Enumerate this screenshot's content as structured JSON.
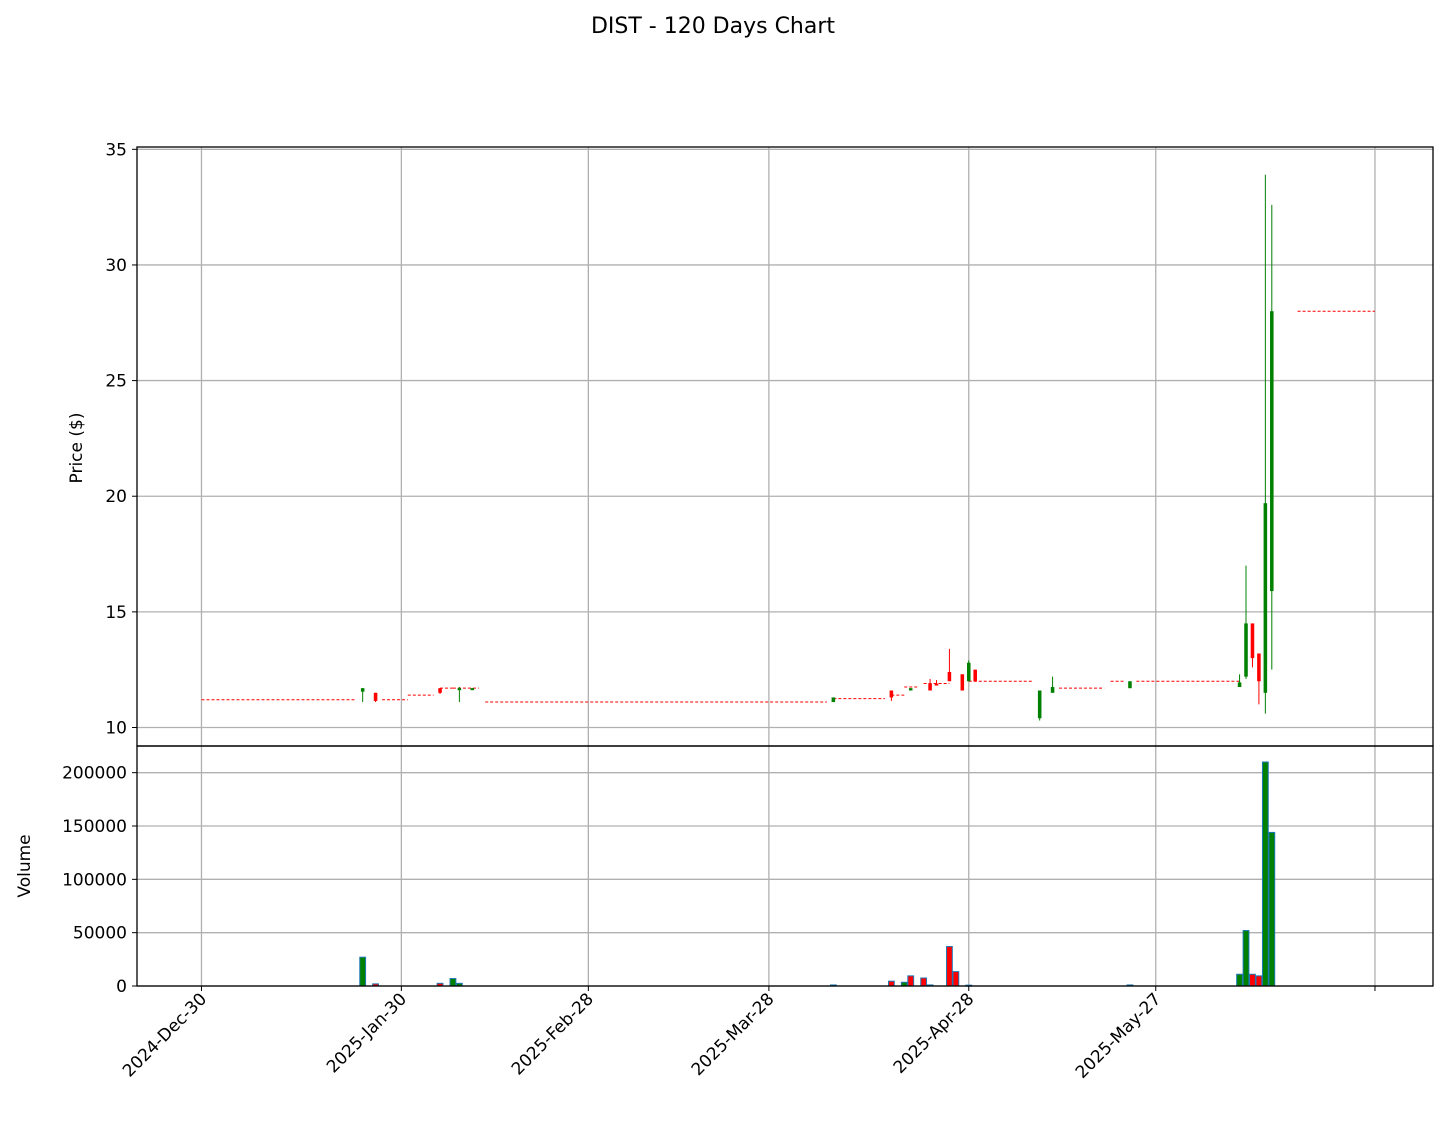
{
  "title": "DIST - 120 Days Chart",
  "colors": {
    "up": "#008000",
    "down": "#ff0000",
    "volume_edge": "#1f77b4",
    "grid": "#b0b0b0",
    "axis": "#000000"
  },
  "chart_data": [
    {
      "type": "candlestick",
      "title": "",
      "ylabel": "Price ($)",
      "ylim": [
        9.2,
        35.1
      ],
      "yticks": [
        10,
        15,
        20,
        25,
        30,
        35
      ],
      "ytick_labels": [
        "10",
        "15",
        "20",
        "25",
        "30",
        "35"
      ],
      "xlim": [
        "2024-12-20",
        "2025-07-09"
      ],
      "grid": true,
      "flat_segments": [
        {
          "from": "2024-12-30",
          "to": "2025-01-23",
          "value": 11.2,
          "color": "down"
        },
        {
          "from": "2025-01-27",
          "to": "2025-01-31",
          "value": 11.2,
          "color": "down"
        },
        {
          "from": "2025-01-31",
          "to": "2025-02-04",
          "value": 11.4,
          "color": "down"
        },
        {
          "from": "2025-02-05",
          "to": "2025-02-07",
          "value": 11.7,
          "color": "down"
        },
        {
          "from": "2025-02-07",
          "to": "2025-02-11",
          "value": 11.7,
          "color": "down"
        },
        {
          "from": "2025-02-12",
          "to": "2025-04-06",
          "value": 11.1,
          "color": "down"
        },
        {
          "from": "2025-04-07",
          "to": "2025-04-15",
          "value": 11.25,
          "color": "down"
        },
        {
          "from": "2025-04-16",
          "to": "2025-04-18",
          "value": 11.4,
          "color": "down"
        },
        {
          "from": "2025-04-18",
          "to": "2025-04-20",
          "value": 11.75,
          "color": "down"
        },
        {
          "from": "2025-04-21",
          "to": "2025-04-25",
          "value": 11.9,
          "color": "down"
        },
        {
          "from": "2025-04-28",
          "to": "2025-05-08",
          "value": 12.0,
          "color": "down"
        },
        {
          "from": "2025-05-12",
          "to": "2025-05-19",
          "value": 11.7,
          "color": "down"
        },
        {
          "from": "2025-05-20",
          "to": "2025-05-22",
          "value": 12.0,
          "color": "down"
        },
        {
          "from": "2025-05-24",
          "to": "2025-06-09",
          "value": 12.0,
          "color": "down"
        },
        {
          "from": "2025-06-18",
          "to": "2025-06-30",
          "value": 28.0,
          "color": "down"
        }
      ],
      "candles": [
        {
          "date": "2025-01-24",
          "open": 11.55,
          "high": 11.7,
          "low": 11.1,
          "close": 11.7
        },
        {
          "date": "2025-01-26",
          "open": 11.5,
          "high": 11.5,
          "low": 11.1,
          "close": 11.15
        },
        {
          "date": "2025-02-05",
          "open": 11.7,
          "high": 11.7,
          "low": 11.45,
          "close": 11.5
        },
        {
          "date": "2025-02-08",
          "open": 11.65,
          "high": 11.75,
          "low": 11.1,
          "close": 11.7
        },
        {
          "date": "2025-02-10",
          "open": 11.65,
          "high": 11.7,
          "low": 11.65,
          "close": 11.7
        },
        {
          "date": "2025-04-07",
          "open": 11.1,
          "high": 11.3,
          "low": 11.1,
          "close": 11.3
        },
        {
          "date": "2025-04-16",
          "open": 11.6,
          "high": 11.6,
          "low": 11.15,
          "close": 11.3
        },
        {
          "date": "2025-04-19",
          "open": 11.6,
          "high": 11.7,
          "low": 11.6,
          "close": 11.7
        },
        {
          "date": "2025-04-22",
          "open": 11.9,
          "high": 12.1,
          "low": 11.6,
          "close": 11.6
        },
        {
          "date": "2025-04-23",
          "open": 11.9,
          "high": 12.05,
          "low": 11.85,
          "close": 11.85
        },
        {
          "date": "2025-04-25",
          "open": 12.4,
          "high": 13.4,
          "low": 12.0,
          "close": 12.0
        },
        {
          "date": "2025-04-27",
          "open": 12.3,
          "high": 12.3,
          "low": 11.6,
          "close": 11.6
        },
        {
          "date": "2025-04-28",
          "open": 12.0,
          "high": 12.9,
          "low": 12.0,
          "close": 12.8
        },
        {
          "date": "2025-04-29",
          "open": 12.5,
          "high": 12.5,
          "low": 12.0,
          "close": 12.0
        },
        {
          "date": "2025-05-09",
          "open": 10.4,
          "high": 11.6,
          "low": 10.3,
          "close": 11.6
        },
        {
          "date": "2025-05-11",
          "open": 11.5,
          "high": 12.2,
          "low": 11.5,
          "close": 11.75
        },
        {
          "date": "2025-05-23",
          "open": 11.7,
          "high": 12.0,
          "low": 11.7,
          "close": 12.0
        },
        {
          "date": "2025-06-09",
          "open": 11.75,
          "high": 12.3,
          "low": 11.75,
          "close": 11.95
        },
        {
          "date": "2025-06-10",
          "open": 12.2,
          "high": 17.0,
          "low": 12.1,
          "close": 14.5
        },
        {
          "date": "2025-06-11",
          "open": 14.5,
          "high": 14.5,
          "low": 12.6,
          "close": 13.0
        },
        {
          "date": "2025-06-12",
          "open": 13.2,
          "high": 13.2,
          "low": 11.0,
          "close": 12.0
        },
        {
          "date": "2025-06-13",
          "open": 11.5,
          "high": 33.9,
          "low": 10.6,
          "close": 19.7
        },
        {
          "date": "2025-06-14",
          "open": 15.9,
          "high": 32.6,
          "low": 12.5,
          "close": 28.0
        }
      ]
    },
    {
      "type": "bar",
      "title": "",
      "ylabel": "Volume",
      "ylim": [
        0,
        225000
      ],
      "yticks": [
        0,
        50000,
        100000,
        150000,
        200000
      ],
      "ytick_labels": [
        "0",
        "50000",
        "100000",
        "150000",
        "200000"
      ],
      "x_tick_dates": [
        "2024-12-30",
        "2025-01-30",
        "2025-02-28",
        "2025-03-28",
        "2025-04-28",
        "2025-05-27",
        "2025-06-30"
      ],
      "x_tick_labels": [
        "2024-Dec-30",
        "2025-Jan-30",
        "2025-Feb-28",
        "2025-Mar-28",
        "2025-Apr-28",
        "2025-May-27",
        ""
      ],
      "grid": true,
      "bars": [
        {
          "date": "2025-01-24",
          "value": 27000,
          "color": "up"
        },
        {
          "date": "2025-01-26",
          "value": 2000,
          "color": "down"
        },
        {
          "date": "2025-02-05",
          "value": 2500,
          "color": "down"
        },
        {
          "date": "2025-02-07",
          "value": 7000,
          "color": "up"
        },
        {
          "date": "2025-02-08",
          "value": 2500,
          "color": "up"
        },
        {
          "date": "2025-04-07",
          "value": 1000,
          "color": "up"
        },
        {
          "date": "2025-04-16",
          "value": 4500,
          "color": "down"
        },
        {
          "date": "2025-04-18",
          "value": 3500,
          "color": "up"
        },
        {
          "date": "2025-04-19",
          "value": 9500,
          "color": "down"
        },
        {
          "date": "2025-04-21",
          "value": 7500,
          "color": "down"
        },
        {
          "date": "2025-04-22",
          "value": 1000,
          "color": "up"
        },
        {
          "date": "2025-04-25",
          "value": 37000,
          "color": "down"
        },
        {
          "date": "2025-04-26",
          "value": 13500,
          "color": "down"
        },
        {
          "date": "2025-04-28",
          "value": 800,
          "color": "up"
        },
        {
          "date": "2025-05-23",
          "value": 1000,
          "color": "up"
        },
        {
          "date": "2025-06-09",
          "value": 11000,
          "color": "up"
        },
        {
          "date": "2025-06-10",
          "value": 52000,
          "color": "up"
        },
        {
          "date": "2025-06-11",
          "value": 11000,
          "color": "down"
        },
        {
          "date": "2025-06-12",
          "value": 9500,
          "color": "down"
        },
        {
          "date": "2025-06-13",
          "value": 210000,
          "color": "up"
        },
        {
          "date": "2025-06-14",
          "value": 144000,
          "color": "up"
        }
      ]
    }
  ]
}
